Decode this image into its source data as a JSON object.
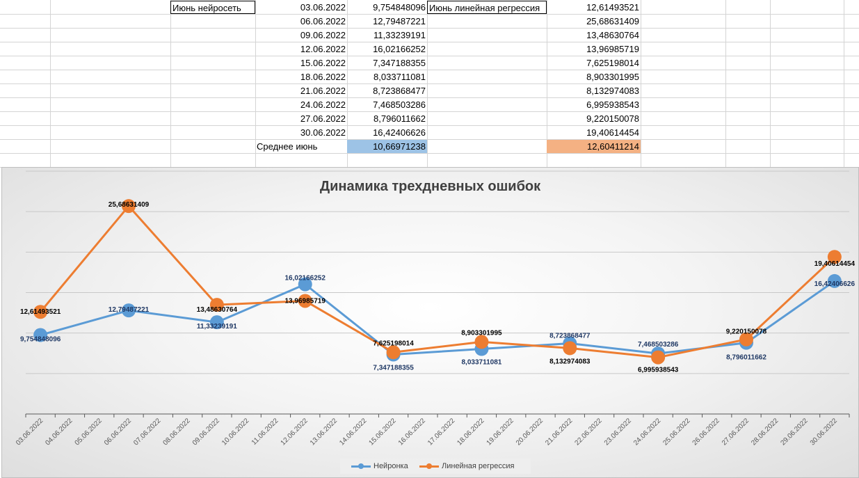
{
  "sheet": {
    "label_nn": "Июнь нейросеть",
    "label_lr": "Июнь линейная регрессия",
    "label_avg": "Среднее июнь",
    "dates": [
      "03.06.2022",
      "06.06.2022",
      "09.06.2022",
      "12.06.2022",
      "15.06.2022",
      "18.06.2022",
      "21.06.2022",
      "24.06.2022",
      "27.06.2022",
      "30.06.2022"
    ],
    "nn_values": [
      "9,754848096",
      "12,79487221",
      "11,33239191",
      "16,02166252",
      "7,347188355",
      "8,033711081",
      "8,723868477",
      "7,468503286",
      "8,796011662",
      "16,42406626"
    ],
    "lr_values": [
      "12,61493521",
      "25,68631409",
      "13,48630764",
      "13,96985719",
      "7,625198014",
      "8,903301995",
      "8,132974083",
      "6,995938543",
      "9,220150078",
      "19,40614454"
    ],
    "avg_nn": "10,66971238",
    "avg_lr": "12,60411214"
  },
  "chart_data": {
    "type": "line",
    "title": "Динамика трехдневных ошибок",
    "x_categories": [
      "03.06.2022",
      "04.06.2022",
      "05.06.2022",
      "06.06.2022",
      "07.06.2022",
      "08.06.2022",
      "09.06.2022",
      "10.06.2022",
      "11.06.2022",
      "12.06.2022",
      "13.06.2022",
      "14.06.2022",
      "15.06.2022",
      "16.06.2022",
      "17.06.2022",
      "18.06.2022",
      "19.06.2022",
      "20.06.2022",
      "21.06.2022",
      "22.06.2022",
      "23.06.2022",
      "24.06.2022",
      "25.06.2022",
      "26.06.2022",
      "27.06.2022",
      "28.06.2022",
      "29.06.2022",
      "30.06.2022"
    ],
    "ylim": [
      0,
      30
    ],
    "grid": true,
    "legend_position": "bottom",
    "series": [
      {
        "name": "Нейронка",
        "color": "#5b9bd5",
        "x": [
          "03.06.2022",
          "06.06.2022",
          "09.06.2022",
          "12.06.2022",
          "15.06.2022",
          "18.06.2022",
          "21.06.2022",
          "24.06.2022",
          "27.06.2022",
          "30.06.2022"
        ],
        "values": [
          9.754848096,
          12.79487221,
          11.33239191,
          16.02166252,
          7.347188355,
          8.033711081,
          8.723868477,
          7.468503286,
          8.796011662,
          16.42406626
        ],
        "labels": [
          "9,754848096",
          "12,79487221",
          "11,33239191",
          "16,02166252",
          "7,347188355",
          "8,033711081",
          "8,723868477",
          "7,468503286",
          "8,796011662",
          "16,42406626"
        ]
      },
      {
        "name": "Линейная регрессия",
        "color": "#ed7d31",
        "x": [
          "03.06.2022",
          "06.06.2022",
          "09.06.2022",
          "12.06.2022",
          "15.06.2022",
          "18.06.2022",
          "21.06.2022",
          "24.06.2022",
          "27.06.2022",
          "30.06.2022"
        ],
        "values": [
          12.61493521,
          25.68631409,
          13.48630764,
          13.96985719,
          7.625198014,
          8.903301995,
          8.132974083,
          6.995938543,
          9.220150078,
          19.40614454
        ],
        "labels": [
          "12,61493521",
          "25,68631409",
          "13,48630764",
          "13,96985719",
          "7,625198014",
          "8,903301995",
          "8,132974083",
          "6,995938543",
          "9,220150078",
          "19,40614454"
        ]
      }
    ]
  }
}
